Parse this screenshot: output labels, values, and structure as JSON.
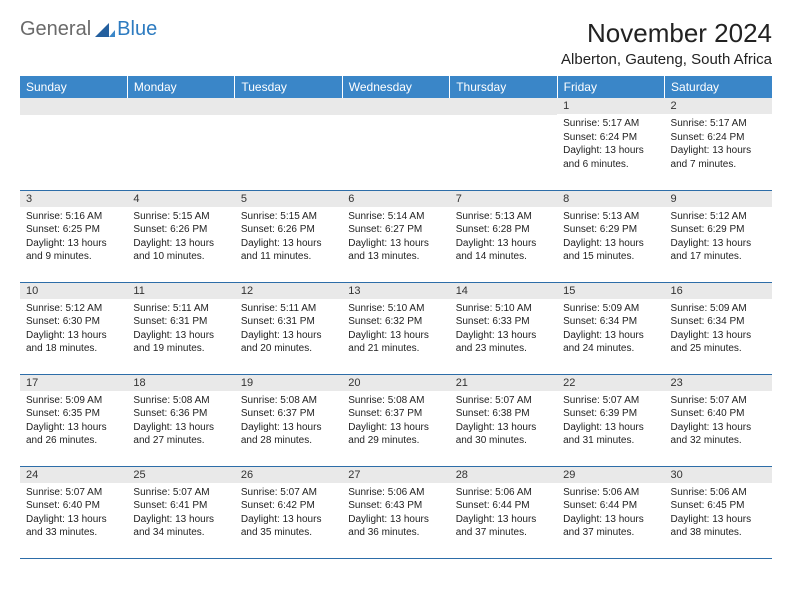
{
  "logo": {
    "general": "General",
    "blue": "Blue"
  },
  "title": "November 2024",
  "location": "Alberton, Gauteng, South Africa",
  "colors": {
    "header_bg": "#3a86c8",
    "header_text": "#ffffff",
    "daynum_bg": "#e9e9e9",
    "border": "#2d6da8",
    "logo_gray": "#6a6a6a",
    "logo_blue": "#2d7bc0"
  },
  "weekdays": [
    "Sunday",
    "Monday",
    "Tuesday",
    "Wednesday",
    "Thursday",
    "Friday",
    "Saturday"
  ],
  "weeks": [
    [
      null,
      null,
      null,
      null,
      null,
      {
        "n": "1",
        "sr": "5:17 AM",
        "ss": "6:24 PM",
        "dl": "13 hours and 6 minutes."
      },
      {
        "n": "2",
        "sr": "5:17 AM",
        "ss": "6:24 PM",
        "dl": "13 hours and 7 minutes."
      }
    ],
    [
      {
        "n": "3",
        "sr": "5:16 AM",
        "ss": "6:25 PM",
        "dl": "13 hours and 9 minutes."
      },
      {
        "n": "4",
        "sr": "5:15 AM",
        "ss": "6:26 PM",
        "dl": "13 hours and 10 minutes."
      },
      {
        "n": "5",
        "sr": "5:15 AM",
        "ss": "6:26 PM",
        "dl": "13 hours and 11 minutes."
      },
      {
        "n": "6",
        "sr": "5:14 AM",
        "ss": "6:27 PM",
        "dl": "13 hours and 13 minutes."
      },
      {
        "n": "7",
        "sr": "5:13 AM",
        "ss": "6:28 PM",
        "dl": "13 hours and 14 minutes."
      },
      {
        "n": "8",
        "sr": "5:13 AM",
        "ss": "6:29 PM",
        "dl": "13 hours and 15 minutes."
      },
      {
        "n": "9",
        "sr": "5:12 AM",
        "ss": "6:29 PM",
        "dl": "13 hours and 17 minutes."
      }
    ],
    [
      {
        "n": "10",
        "sr": "5:12 AM",
        "ss": "6:30 PM",
        "dl": "13 hours and 18 minutes."
      },
      {
        "n": "11",
        "sr": "5:11 AM",
        "ss": "6:31 PM",
        "dl": "13 hours and 19 minutes."
      },
      {
        "n": "12",
        "sr": "5:11 AM",
        "ss": "6:31 PM",
        "dl": "13 hours and 20 minutes."
      },
      {
        "n": "13",
        "sr": "5:10 AM",
        "ss": "6:32 PM",
        "dl": "13 hours and 21 minutes."
      },
      {
        "n": "14",
        "sr": "5:10 AM",
        "ss": "6:33 PM",
        "dl": "13 hours and 23 minutes."
      },
      {
        "n": "15",
        "sr": "5:09 AM",
        "ss": "6:34 PM",
        "dl": "13 hours and 24 minutes."
      },
      {
        "n": "16",
        "sr": "5:09 AM",
        "ss": "6:34 PM",
        "dl": "13 hours and 25 minutes."
      }
    ],
    [
      {
        "n": "17",
        "sr": "5:09 AM",
        "ss": "6:35 PM",
        "dl": "13 hours and 26 minutes."
      },
      {
        "n": "18",
        "sr": "5:08 AM",
        "ss": "6:36 PM",
        "dl": "13 hours and 27 minutes."
      },
      {
        "n": "19",
        "sr": "5:08 AM",
        "ss": "6:37 PM",
        "dl": "13 hours and 28 minutes."
      },
      {
        "n": "20",
        "sr": "5:08 AM",
        "ss": "6:37 PM",
        "dl": "13 hours and 29 minutes."
      },
      {
        "n": "21",
        "sr": "5:07 AM",
        "ss": "6:38 PM",
        "dl": "13 hours and 30 minutes."
      },
      {
        "n": "22",
        "sr": "5:07 AM",
        "ss": "6:39 PM",
        "dl": "13 hours and 31 minutes."
      },
      {
        "n": "23",
        "sr": "5:07 AM",
        "ss": "6:40 PM",
        "dl": "13 hours and 32 minutes."
      }
    ],
    [
      {
        "n": "24",
        "sr": "5:07 AM",
        "ss": "6:40 PM",
        "dl": "13 hours and 33 minutes."
      },
      {
        "n": "25",
        "sr": "5:07 AM",
        "ss": "6:41 PM",
        "dl": "13 hours and 34 minutes."
      },
      {
        "n": "26",
        "sr": "5:07 AM",
        "ss": "6:42 PM",
        "dl": "13 hours and 35 minutes."
      },
      {
        "n": "27",
        "sr": "5:06 AM",
        "ss": "6:43 PM",
        "dl": "13 hours and 36 minutes."
      },
      {
        "n": "28",
        "sr": "5:06 AM",
        "ss": "6:44 PM",
        "dl": "13 hours and 37 minutes."
      },
      {
        "n": "29",
        "sr": "5:06 AM",
        "ss": "6:44 PM",
        "dl": "13 hours and 37 minutes."
      },
      {
        "n": "30",
        "sr": "5:06 AM",
        "ss": "6:45 PM",
        "dl": "13 hours and 38 minutes."
      }
    ]
  ],
  "labels": {
    "sunrise": "Sunrise:",
    "sunset": "Sunset:",
    "daylight": "Daylight:"
  }
}
